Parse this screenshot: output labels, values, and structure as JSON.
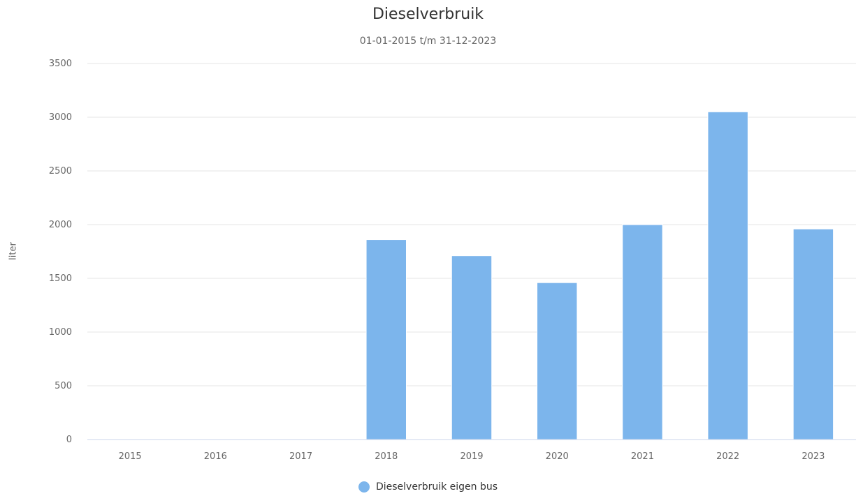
{
  "chart_data": {
    "type": "bar",
    "title": "Dieselverbruik",
    "subtitle": "01-01-2015 t/m 31-12-2023",
    "ylabel": "liter",
    "xlabel": "",
    "categories": [
      "2015",
      "2016",
      "2017",
      "2018",
      "2019",
      "2020",
      "2021",
      "2022",
      "2023"
    ],
    "series": [
      {
        "name": "Dieselverbruik eigen bus",
        "values": [
          0,
          0,
          0,
          1860,
          1710,
          1460,
          2000,
          3050,
          1960
        ],
        "color": "#7cb5ec"
      }
    ],
    "ylim": [
      0,
      3500
    ],
    "yticks": [
      "0",
      "500",
      "1000",
      "1500",
      "2000",
      "2500",
      "3000",
      "3500"
    ],
    "grid": true,
    "legend_position": "bottom-center"
  }
}
